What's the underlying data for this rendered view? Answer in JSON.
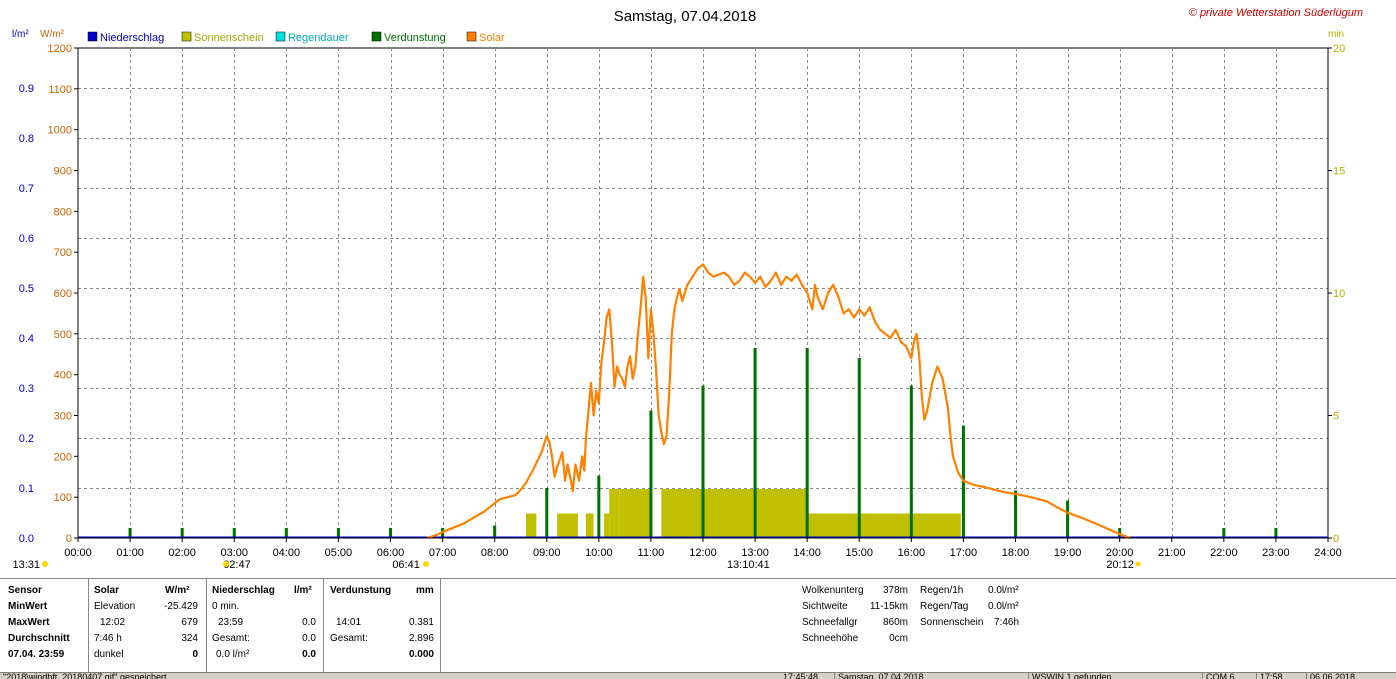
{
  "chart_data": {
    "type": "bar+line",
    "title": "Samstag, 07.04.2018",
    "copyright": "© private Wetterstation Süderlügum",
    "left_axis_units": [
      "l/m²",
      "W/m²"
    ],
    "right_axis_unit": "min",
    "legend": [
      {
        "label": "Niederschlag",
        "color": "#0000cc"
      },
      {
        "label": "Sonnenschein",
        "color": "#c0c000"
      },
      {
        "label": "Regendauer",
        "color": "#00e0e0"
      },
      {
        "label": "Verdunstung",
        "color": "#007000"
      },
      {
        "label": "Solar",
        "color": "#ff8000"
      }
    ],
    "x_ticks": [
      "00:00",
      "01:00",
      "02:00",
      "03:00",
      "04:00",
      "05:00",
      "06:00",
      "07:00",
      "08:00",
      "09:00",
      "10:00",
      "11:00",
      "12:00",
      "13:00",
      "14:00",
      "15:00",
      "16:00",
      "17:00",
      "18:00",
      "19:00",
      "20:00",
      "21:00",
      "22:00",
      "23:00",
      "24:00"
    ],
    "precip_ticks": [
      "0.0",
      "0.1",
      "0.2",
      "0.3",
      "0.4",
      "0.5",
      "0.6",
      "0.7",
      "0.8",
      "0.9"
    ],
    "solar_ticks": [
      "0",
      "100",
      "200",
      "300",
      "400",
      "500",
      "600",
      "700",
      "800",
      "900",
      "1000",
      "1100",
      "1200"
    ],
    "min_ticks": [
      "0",
      "5",
      "10",
      "15",
      "20"
    ],
    "xlim": [
      0,
      24
    ],
    "solar_ylim": [
      0,
      1200
    ],
    "precip_ylim": [
      0,
      0.98
    ],
    "min_ylim": [
      0,
      20
    ],
    "grid": true,
    "markers": {
      "moonrise": "02:47",
      "sunrise": "06:41",
      "transit": "13:10:41",
      "sunset": "20:12",
      "moonset_label": "13:31"
    },
    "solar_series": [
      [
        6.7,
        0
      ],
      [
        6.9,
        8
      ],
      [
        7.0,
        15
      ],
      [
        7.2,
        25
      ],
      [
        7.4,
        35
      ],
      [
        7.6,
        50
      ],
      [
        7.8,
        65
      ],
      [
        8.0,
        85
      ],
      [
        8.1,
        95
      ],
      [
        8.25,
        100
      ],
      [
        8.4,
        105
      ],
      [
        8.5,
        118
      ],
      [
        8.6,
        135
      ],
      [
        8.75,
        170
      ],
      [
        8.9,
        210
      ],
      [
        9.0,
        250
      ],
      [
        9.05,
        235
      ],
      [
        9.1,
        200
      ],
      [
        9.15,
        150
      ],
      [
        9.2,
        175
      ],
      [
        9.3,
        210
      ],
      [
        9.35,
        140
      ],
      [
        9.4,
        180
      ],
      [
        9.5,
        115
      ],
      [
        9.55,
        180
      ],
      [
        9.62,
        140
      ],
      [
        9.68,
        200
      ],
      [
        9.72,
        165
      ],
      [
        9.75,
        240
      ],
      [
        9.8,
        310
      ],
      [
        9.85,
        380
      ],
      [
        9.9,
        300
      ],
      [
        9.95,
        360
      ],
      [
        10.0,
        330
      ],
      [
        10.05,
        430
      ],
      [
        10.1,
        480
      ],
      [
        10.15,
        540
      ],
      [
        10.2,
        560
      ],
      [
        10.25,
        480
      ],
      [
        10.3,
        370
      ],
      [
        10.35,
        420
      ],
      [
        10.4,
        400
      ],
      [
        10.45,
        390
      ],
      [
        10.5,
        370
      ],
      [
        10.55,
        420
      ],
      [
        10.6,
        445
      ],
      [
        10.65,
        390
      ],
      [
        10.7,
        420
      ],
      [
        10.75,
        500
      ],
      [
        10.8,
        560
      ],
      [
        10.85,
        640
      ],
      [
        10.9,
        590
      ],
      [
        10.95,
        440
      ],
      [
        11.0,
        560
      ],
      [
        11.05,
        500
      ],
      [
        11.1,
        410
      ],
      [
        11.15,
        300
      ],
      [
        11.2,
        260
      ],
      [
        11.25,
        230
      ],
      [
        11.3,
        250
      ],
      [
        11.35,
        350
      ],
      [
        11.4,
        500
      ],
      [
        11.45,
        560
      ],
      [
        11.5,
        590
      ],
      [
        11.55,
        610
      ],
      [
        11.6,
        580
      ],
      [
        11.7,
        620
      ],
      [
        11.8,
        640
      ],
      [
        11.9,
        660
      ],
      [
        12.0,
        670
      ],
      [
        12.1,
        650
      ],
      [
        12.2,
        640
      ],
      [
        12.3,
        645
      ],
      [
        12.4,
        650
      ],
      [
        12.5,
        640
      ],
      [
        12.6,
        620
      ],
      [
        12.7,
        630
      ],
      [
        12.8,
        650
      ],
      [
        12.9,
        640
      ],
      [
        13.0,
        625
      ],
      [
        13.1,
        640
      ],
      [
        13.2,
        615
      ],
      [
        13.3,
        630
      ],
      [
        13.4,
        650
      ],
      [
        13.5,
        620
      ],
      [
        13.6,
        640
      ],
      [
        13.7,
        630
      ],
      [
        13.8,
        645
      ],
      [
        13.9,
        620
      ],
      [
        14.0,
        600
      ],
      [
        14.1,
        560
      ],
      [
        14.15,
        620
      ],
      [
        14.2,
        590
      ],
      [
        14.3,
        560
      ],
      [
        14.4,
        600
      ],
      [
        14.5,
        620
      ],
      [
        14.6,
        590
      ],
      [
        14.7,
        550
      ],
      [
        14.8,
        560
      ],
      [
        14.9,
        540
      ],
      [
        15.0,
        560
      ],
      [
        15.1,
        545
      ],
      [
        15.2,
        565
      ],
      [
        15.3,
        530
      ],
      [
        15.4,
        510
      ],
      [
        15.5,
        500
      ],
      [
        15.6,
        490
      ],
      [
        15.7,
        510
      ],
      [
        15.8,
        480
      ],
      [
        15.9,
        470
      ],
      [
        16.0,
        440
      ],
      [
        16.05,
        480
      ],
      [
        16.1,
        500
      ],
      [
        16.15,
        450
      ],
      [
        16.2,
        350
      ],
      [
        16.25,
        290
      ],
      [
        16.3,
        310
      ],
      [
        16.4,
        380
      ],
      [
        16.5,
        420
      ],
      [
        16.6,
        390
      ],
      [
        16.7,
        320
      ],
      [
        16.75,
        250
      ],
      [
        16.8,
        200
      ],
      [
        16.9,
        160
      ],
      [
        17.0,
        140
      ],
      [
        17.2,
        130
      ],
      [
        17.4,
        125
      ],
      [
        17.6,
        118
      ],
      [
        17.8,
        112
      ],
      [
        18.0,
        108
      ],
      [
        18.3,
        100
      ],
      [
        18.6,
        90
      ],
      [
        18.8,
        75
      ],
      [
        19.0,
        62
      ],
      [
        19.3,
        48
      ],
      [
        19.6,
        32
      ],
      [
        19.9,
        15
      ],
      [
        20.1,
        5
      ],
      [
        20.2,
        0
      ]
    ],
    "verdunstung_bars": [
      [
        1.0,
        0.02
      ],
      [
        2.0,
        0.02
      ],
      [
        3.0,
        0.02
      ],
      [
        4.0,
        0.02
      ],
      [
        5.0,
        0.02
      ],
      [
        6.0,
        0.02
      ],
      [
        7.0,
        0.02
      ],
      [
        8.0,
        0.025
      ],
      [
        9.0,
        0.1
      ],
      [
        10.0,
        0.125
      ],
      [
        11.0,
        0.255
      ],
      [
        12.0,
        0.305
      ],
      [
        13.0,
        0.38
      ],
      [
        14.0,
        0.38
      ],
      [
        15.0,
        0.36
      ],
      [
        16.0,
        0.305
      ],
      [
        17.0,
        0.225
      ],
      [
        18.0,
        0.095
      ],
      [
        19.0,
        0.075
      ],
      [
        20.0,
        0.02
      ],
      [
        22.0,
        0.02
      ],
      [
        23.0,
        0.02
      ]
    ],
    "sonnenschein_bars": [
      [
        8.6,
        8.8,
        1
      ],
      [
        9.2,
        9.6,
        1
      ],
      [
        9.75,
        9.9,
        1
      ],
      [
        10.1,
        10.2,
        1
      ],
      [
        10.2,
        10.4,
        2
      ],
      [
        10.4,
        11.0,
        2
      ],
      [
        11.2,
        12.0,
        2
      ],
      [
        12.0,
        13.0,
        2
      ],
      [
        13.0,
        14.0,
        2
      ],
      [
        14.0,
        15.0,
        1
      ],
      [
        15.0,
        16.0,
        1
      ],
      [
        16.0,
        16.95,
        1
      ]
    ]
  },
  "stats": {
    "col_sensor": {
      "header": "Sensor",
      "rows": [
        "MinWert",
        "MaxWert",
        "Durchschnitt",
        "07.04.  23:59"
      ]
    },
    "col_solar": {
      "header": "Solar",
      "unit": "W/m²",
      "rows": [
        [
          "Elevation",
          "-25.429"
        ],
        [
          "12:02",
          "679"
        ],
        [
          "7:46 h",
          "324"
        ],
        [
          "dunkel",
          "0"
        ]
      ]
    },
    "col_precip": {
      "header": "Niederschlag",
      "unit": "l/m²",
      "rows": [
        [
          "0 min.",
          ""
        ],
        [
          "23:59",
          "0.0"
        ],
        [
          "Gesamt:",
          "0.0"
        ],
        [
          "0.0 l/m²",
          "0.0"
        ]
      ]
    },
    "col_evap": {
      "header": "Verdunstung",
      "unit": "mm",
      "rows": [
        [
          "",
          ""
        ],
        [
          "14:01",
          "0.381"
        ],
        [
          "Gesamt:",
          "2.896"
        ],
        [
          "",
          "0.000"
        ]
      ]
    },
    "col_cloud": {
      "rows": [
        [
          "Wolkenunterg",
          "378m"
        ],
        [
          "Sichtweite",
          "11-15km"
        ],
        [
          "Schneefallgr",
          "860m"
        ],
        [
          "Schneehöhe",
          "0cm"
        ]
      ]
    },
    "col_rain": {
      "rows": [
        [
          "Regen/1h",
          "0.0l/m²"
        ],
        [
          "Regen/Tag",
          "0.0l/m²"
        ],
        [
          "Sonnenschein",
          "7:46h"
        ]
      ]
    }
  },
  "statusbar": [
    "\"2018\\windbft_20180407.gif\" gespeichert",
    "17:45:48",
    "Samstag, 07.04.2018",
    "WSWIN 1 gefunden",
    "COM 6",
    "17:58",
    "06.06.2018"
  ]
}
